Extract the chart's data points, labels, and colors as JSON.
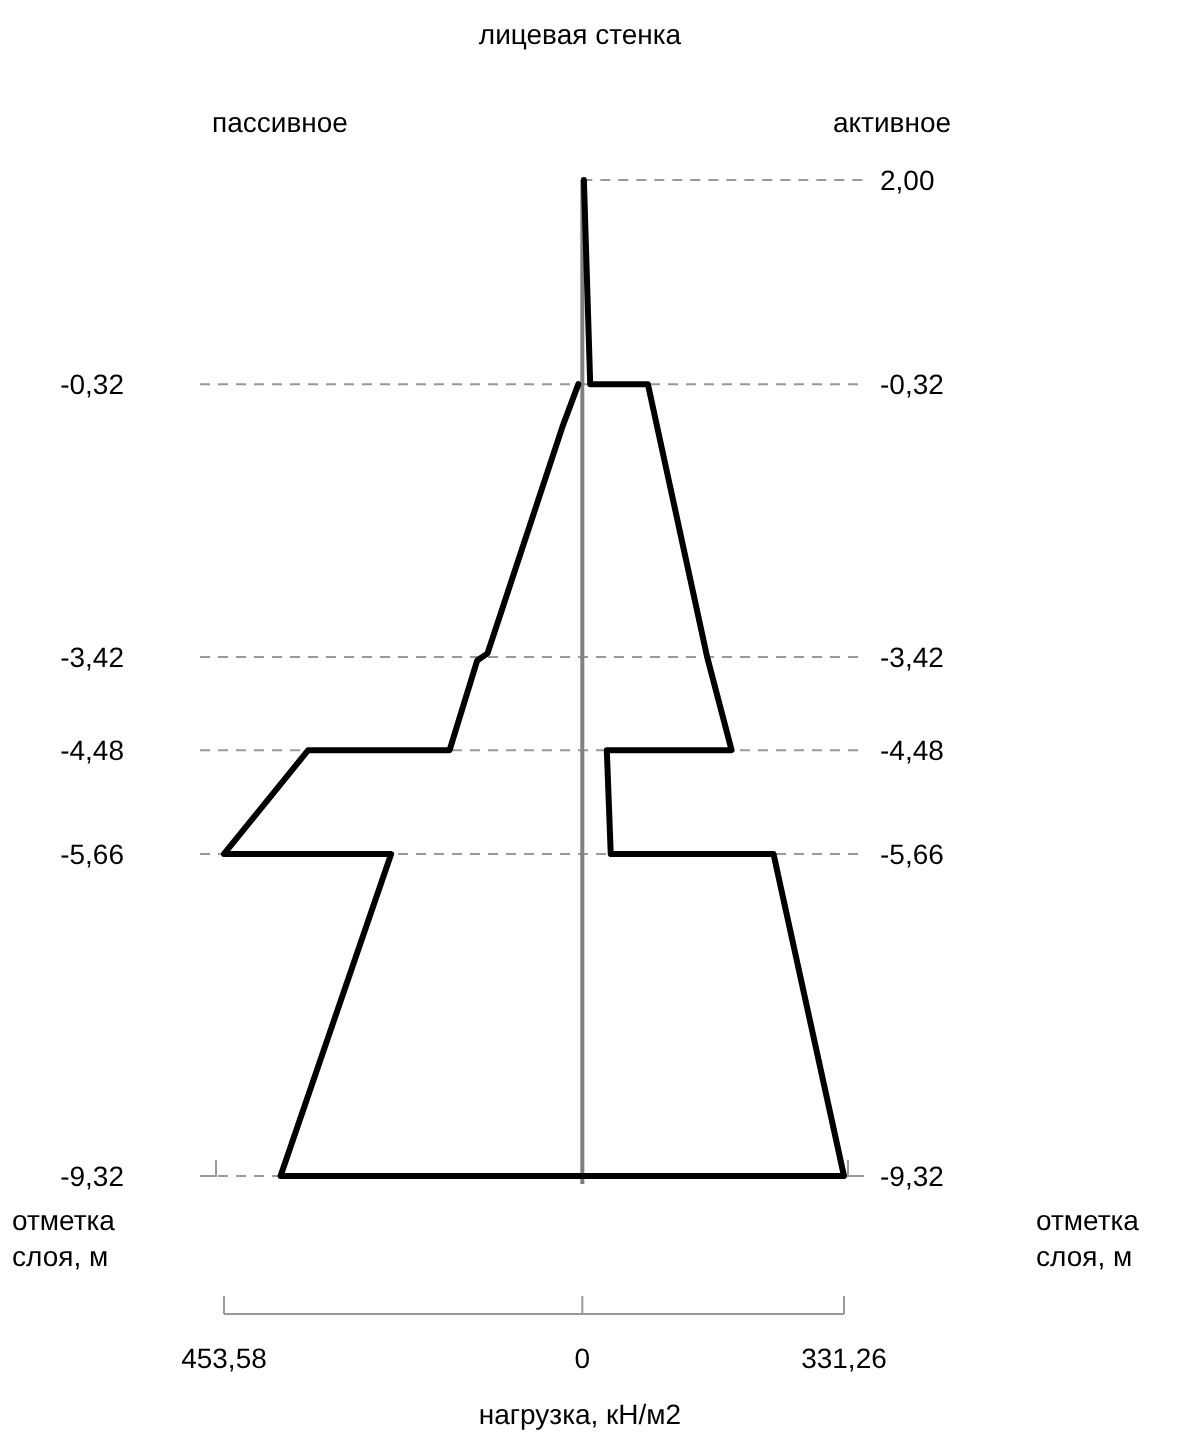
{
  "chart_data": {
    "type": "line",
    "title": "лицевая стенка",
    "xlabel": "нагрузка, кН/м2",
    "ylabel": "отметка\nслоя, м",
    "y2label": "отметка\nслоя, м",
    "xlim": [
      -453.58,
      331.26
    ],
    "xticks": [
      {
        "value": -453.58,
        "label": "453,58"
      },
      0,
      {
        "value": 331.26,
        "label": "331,26"
      }
    ],
    "ylim": [
      -9.32,
      2.0
    ],
    "yticks": [
      {
        "value": -0.32,
        "label": "-0,32"
      },
      {
        "value": -3.42,
        "label": "-3,42"
      },
      {
        "value": -4.48,
        "label": "-4,48"
      },
      {
        "value": -5.66,
        "label": "-5,66"
      },
      {
        "value": -9.32,
        "label": "-9,32"
      }
    ],
    "y2lim": [
      -9.32,
      2.0
    ],
    "y2ticks": [
      {
        "value": 2.0,
        "label": "2,00"
      },
      {
        "value": -0.32,
        "label": "-0,32"
      },
      {
        "value": -3.42,
        "label": "-3,42"
      },
      {
        "value": -4.48,
        "label": "-4,48"
      },
      {
        "value": -5.66,
        "label": "-5,66"
      },
      {
        "value": -9.32,
        "label": "-9,32"
      }
    ],
    "grid": "y",
    "line_style": "solid",
    "marker": "none",
    "ref_lines": [
      {
        "axis": "x",
        "value": 0,
        "color": "#808080"
      }
    ],
    "series": [
      {
        "color": "#000000",
        "x": [
          2,
          10,
          83,
          158,
          189,
          31,
          36,
          242,
          331.26,
          -382,
          -242,
          -453.58,
          -347,
          -168,
          -133,
          -120,
          -25,
          -5
        ],
        "values": [
          2.0,
          -0.32,
          -0.32,
          -3.42,
          -4.48,
          -4.48,
          -5.66,
          -5.66,
          -9.32,
          -9.32,
          -5.66,
          -5.66,
          -4.48,
          -4.48,
          -3.46,
          -3.38,
          -0.8,
          -0.32
        ]
      }
    ],
    "annotations": [
      "пассивное",
      "активное"
    ]
  }
}
